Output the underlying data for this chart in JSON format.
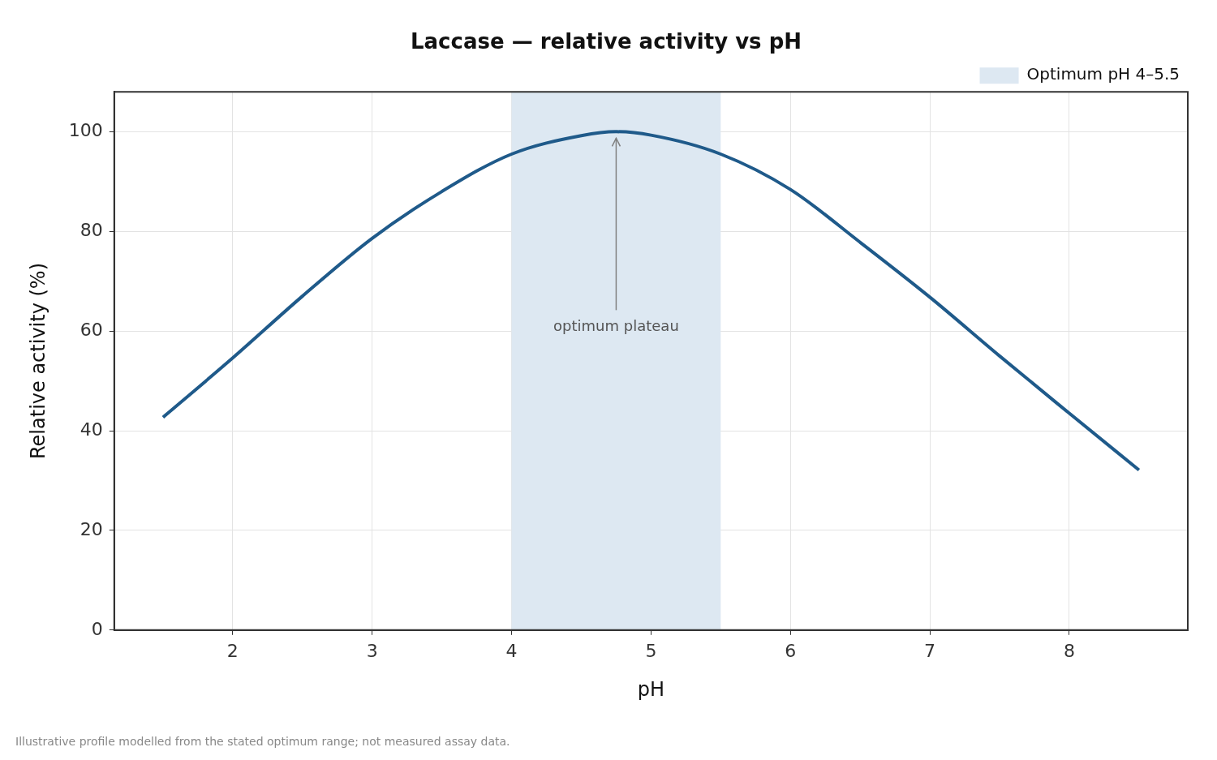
{
  "chart_data": {
    "type": "line",
    "title": "Laccase — relative activity vs pH",
    "xlabel": "pH",
    "ylabel": "Relative activity (%)",
    "x": [
      1.5,
      2,
      2.5,
      3,
      3.5,
      4,
      4.5,
      4.75,
      5,
      5.5,
      6,
      6.5,
      7,
      7.5,
      8,
      8.5
    ],
    "series": [
      {
        "color": "#1f5a8a",
        "values": [
          42.7,
          54.6,
          67,
          78.6,
          88,
          95.5,
          99.2,
          100,
          99.3,
          95.5,
          88.4,
          77.8,
          66.8,
          55,
          43.5,
          32.1
        ]
      }
    ],
    "xlim": [
      1.15,
      8.85
    ],
    "ylim": [
      0,
      108
    ],
    "xticks": [
      2,
      3,
      4,
      5,
      6,
      7,
      8
    ],
    "yticks": [
      0,
      20,
      40,
      60,
      80,
      100
    ],
    "bands": [
      {
        "axis": "x",
        "from": 4,
        "to": 5.5,
        "label": "Optimum pH 4–5.5",
        "color": "#dde8f2"
      }
    ],
    "annotations": [
      {
        "text": "optimum plateau",
        "x": 4.75,
        "y": 100
      },
      "Illustrative profile modelled from the stated optimum range; not measured assay data."
    ],
    "grid": true,
    "legend": "top right",
    "marker": "none",
    "line_style": "solid"
  }
}
